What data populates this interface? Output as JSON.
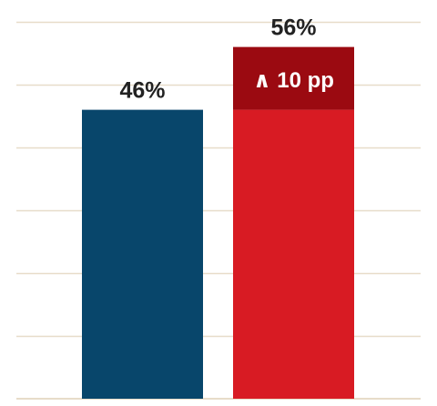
{
  "chart_data": {
    "type": "bar",
    "title": "",
    "xlabel": "",
    "ylabel": "",
    "categories": [
      "",
      ""
    ],
    "values": [
      46,
      56
    ],
    "value_labels": [
      "46%",
      "56%"
    ],
    "ylim": [
      0,
      60
    ],
    "grid": true,
    "legend": "none",
    "annotation": {
      "text": "∧ 10 pp",
      "category_index": 1,
      "from": 46,
      "to": 56
    },
    "colors": {
      "bar_1": "#08466b",
      "bar_2": "#d81b23",
      "increase_segment": "#9b0a11",
      "gridline": "#e7dcc9",
      "baseline": "#e7dcc9",
      "value_label": "#222222",
      "annotation_text": "#ffffff"
    }
  }
}
